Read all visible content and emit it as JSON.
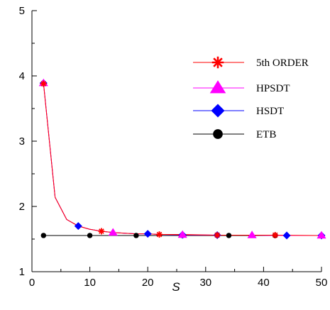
{
  "chart_data": {
    "type": "line",
    "title": "",
    "xlabel": "S",
    "ylabel": "",
    "xlim": [
      0,
      50
    ],
    "ylim": [
      1,
      5
    ],
    "xticks": [
      0,
      10,
      20,
      30,
      40,
      50
    ],
    "yticks": [
      1,
      2,
      3,
      4,
      5
    ],
    "grid": false,
    "legend_position": "right",
    "series": [
      {
        "name": "5th ORDER",
        "color": "#ff0000",
        "marker": "asterisk",
        "x": [
          2,
          4,
          6,
          8,
          10,
          12,
          14,
          16,
          18,
          20,
          22,
          26,
          32,
          38,
          42,
          50
        ],
        "y": [
          3.88,
          2.14,
          1.8,
          1.7,
          1.65,
          1.62,
          1.6,
          1.59,
          1.58,
          1.58,
          1.57,
          1.57,
          1.56,
          1.56,
          1.56,
          1.555
        ],
        "marker_x": [
          2,
          12,
          22,
          32,
          42
        ],
        "marker_y": [
          3.88,
          1.62,
          1.57,
          1.56,
          1.56
        ]
      },
      {
        "name": "HPSDT",
        "color": "#ff00ff",
        "marker": "triangle",
        "x": [
          2,
          4,
          6,
          8,
          10,
          12,
          14,
          16,
          18,
          20,
          22,
          26,
          32,
          38,
          42,
          50
        ],
        "y": [
          3.89,
          2.14,
          1.8,
          1.7,
          1.65,
          1.62,
          1.6,
          1.59,
          1.58,
          1.58,
          1.57,
          1.565,
          1.56,
          1.56,
          1.555,
          1.555
        ],
        "marker_x": [
          2,
          14,
          26,
          38,
          50
        ],
        "marker_y": [
          3.89,
          1.6,
          1.565,
          1.56,
          1.555
        ]
      },
      {
        "name": "HSDT",
        "color": "#0000ff",
        "marker": "diamond",
        "x": [
          2,
          4,
          6,
          8,
          10,
          12,
          14,
          16,
          18,
          20,
          22,
          26,
          32,
          38,
          44,
          50
        ],
        "y": [
          3.89,
          2.14,
          1.8,
          1.7,
          1.65,
          1.62,
          1.6,
          1.59,
          1.58,
          1.58,
          1.57,
          1.565,
          1.56,
          1.56,
          1.555,
          1.555
        ],
        "marker_x": [
          2,
          8,
          20,
          26,
          32,
          44,
          50
        ],
        "marker_y": [
          3.89,
          1.7,
          1.58,
          1.565,
          1.56,
          1.555,
          1.555
        ]
      },
      {
        "name": "ETB",
        "color": "#000000",
        "marker": "circle",
        "x": [
          2,
          50
        ],
        "y": [
          1.555,
          1.555
        ],
        "marker_x": [
          2,
          10,
          18,
          26,
          34,
          42
        ],
        "marker_y": [
          1.555,
          1.555,
          1.555,
          1.555,
          1.555,
          1.555
        ]
      }
    ]
  }
}
